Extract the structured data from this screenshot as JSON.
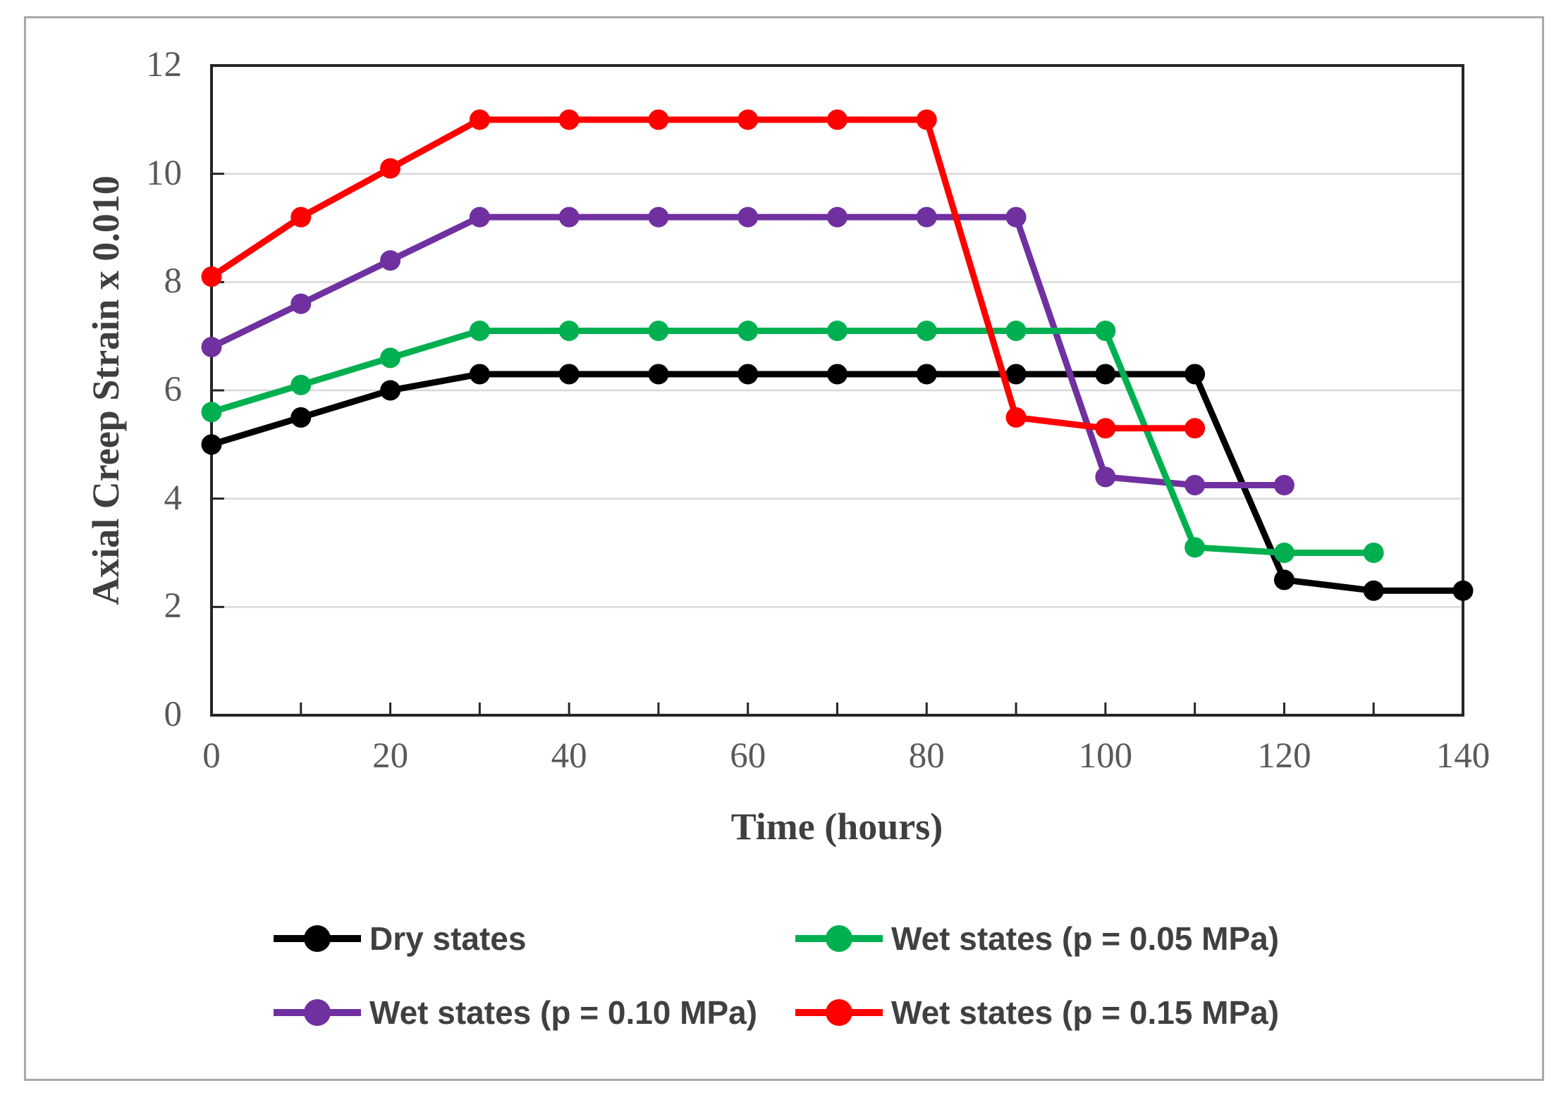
{
  "figure": {
    "border_color": "#a8a8a8",
    "background": "#ffffff"
  },
  "chart_data": {
    "type": "line",
    "title": "",
    "xlabel": "Time (hours)",
    "ylabel": "Axial Creep Strain x 0.010",
    "xlim": [
      0,
      140
    ],
    "ylim": [
      0,
      12
    ],
    "x_major_ticks": [
      0,
      20,
      40,
      60,
      80,
      100,
      120,
      140
    ],
    "x_tick_labels": [
      "0",
      "20",
      "40",
      "60",
      "80",
      "100",
      "120",
      "140"
    ],
    "x_minor_tick_step": 10,
    "y_ticks": [
      0,
      2,
      4,
      6,
      8,
      10,
      12
    ],
    "y_tick_labels": [
      "0",
      "2",
      "4",
      "6",
      "8",
      "10",
      "12"
    ],
    "grid": "horizontal-only",
    "gridline_values": [
      2,
      4,
      6,
      8,
      10
    ],
    "legend_position": "bottom 2x2 grid",
    "marker_style": "filled-circle",
    "series": [
      {
        "name": "Dry states",
        "color": "#000000",
        "x": [
          0,
          10,
          20,
          30,
          40,
          50,
          60,
          70,
          80,
          90,
          100,
          110,
          120,
          130,
          140
        ],
        "values": [
          5.0,
          5.5,
          6.0,
          6.3,
          6.3,
          6.3,
          6.3,
          6.3,
          6.3,
          6.3,
          6.3,
          6.3,
          2.5,
          2.3,
          2.3
        ]
      },
      {
        "name": "Wet states (p = 0.05 MPa)",
        "color": "#00B050",
        "x": [
          0,
          10,
          20,
          30,
          40,
          50,
          60,
          70,
          80,
          90,
          100,
          110,
          120,
          130
        ],
        "values": [
          5.6,
          6.1,
          6.6,
          7.1,
          7.1,
          7.1,
          7.1,
          7.1,
          7.1,
          7.1,
          7.1,
          3.1,
          3.0,
          3.0
        ]
      },
      {
        "name": "Wet states (p = 0.10 MPa)",
        "color": "#7030A0",
        "x": [
          0,
          10,
          20,
          30,
          40,
          50,
          60,
          70,
          80,
          90,
          100,
          110,
          120
        ],
        "values": [
          6.8,
          7.6,
          8.4,
          9.2,
          9.2,
          9.2,
          9.2,
          9.2,
          9.2,
          9.2,
          4.4,
          4.25,
          4.25
        ]
      },
      {
        "name": "Wet states (p = 0.15 MPa)",
        "color": "#FF0000",
        "x": [
          0,
          10,
          20,
          30,
          40,
          50,
          60,
          70,
          80,
          90,
          100,
          110
        ],
        "values": [
          8.1,
          9.2,
          10.1,
          11.0,
          11.0,
          11.0,
          11.0,
          11.0,
          11.0,
          5.5,
          5.3,
          5.3
        ]
      }
    ],
    "draw_order": [
      0,
      2,
      1,
      3
    ]
  },
  "style_colors": {
    "gridline": "#D9D9D9",
    "axis_frame": "#262626",
    "tick_mark": "#262626",
    "tick_label": "#595959",
    "axis_title": "#3f3f3f",
    "legend_text": "#404040"
  },
  "legend": {
    "items": [
      {
        "series_index": 0
      },
      {
        "series_index": 1
      },
      {
        "series_index": 2
      },
      {
        "series_index": 3
      }
    ]
  }
}
